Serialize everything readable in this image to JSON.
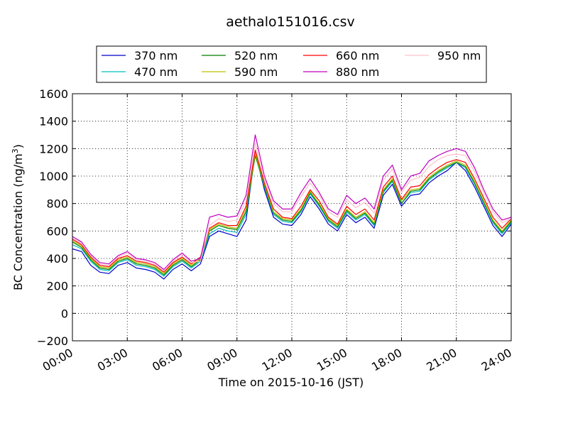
{
  "chart_data": {
    "type": "line",
    "title": "aethalo151016.csv",
    "xlabel": "Time on 2015-10-16 (JST)",
    "ylabel": "BC Concentration (ng/m",
    "ylabel_sup": "3",
    "ylabel_close": ")",
    "xlim": [
      0,
      24
    ],
    "ylim": [
      -200,
      1600
    ],
    "grid": true,
    "legend_position": "top-center",
    "x_ticks": [
      {
        "value": 0,
        "label": "00:00"
      },
      {
        "value": 3,
        "label": "03:00"
      },
      {
        "value": 6,
        "label": "06:00"
      },
      {
        "value": 9,
        "label": "09:00"
      },
      {
        "value": 12,
        "label": "12:00"
      },
      {
        "value": 15,
        "label": "15:00"
      },
      {
        "value": 18,
        "label": "18:00"
      },
      {
        "value": 21,
        "label": "21:00"
      },
      {
        "value": 24,
        "label": "24:00"
      }
    ],
    "y_ticks": [
      {
        "value": -200,
        "label": "−200"
      },
      {
        "value": 0,
        "label": "0"
      },
      {
        "value": 200,
        "label": "200"
      },
      {
        "value": 400,
        "label": "400"
      },
      {
        "value": 600,
        "label": "600"
      },
      {
        "value": 800,
        "label": "800"
      },
      {
        "value": 1000,
        "label": "1000"
      },
      {
        "value": 1200,
        "label": "1200"
      },
      {
        "value": 1400,
        "label": "1400"
      },
      {
        "value": 1600,
        "label": "1600"
      }
    ],
    "x": [
      0,
      0.5,
      1,
      1.5,
      2,
      2.5,
      3,
      3.5,
      4,
      4.5,
      5,
      5.5,
      6,
      6.5,
      7,
      7.5,
      8,
      8.5,
      9,
      9.5,
      10,
      10.5,
      11,
      11.5,
      12,
      12.5,
      13,
      13.5,
      14,
      14.5,
      15,
      15.5,
      16,
      16.5,
      17,
      17.5,
      18,
      18.5,
      19,
      19.5,
      20,
      20.5,
      21,
      21.5,
      22,
      22.5,
      23,
      23.5,
      24
    ],
    "series": [
      {
        "name": "370 nm",
        "color": "#0000cc",
        "values": [
          470,
          450,
          350,
          300,
          290,
          350,
          370,
          330,
          320,
          300,
          250,
          320,
          360,
          310,
          360,
          560,
          600,
          580,
          560,
          680,
          1180,
          900,
          700,
          650,
          640,
          720,
          850,
          760,
          650,
          600,
          720,
          660,
          700,
          620,
          860,
          940,
          780,
          860,
          870,
          950,
          1000,
          1040,
          1100,
          1040,
          920,
          780,
          640,
          560,
          650
        ]
      },
      {
        "name": "470 nm",
        "color": "#00bfbf",
        "values": [
          500,
          470,
          380,
          320,
          310,
          370,
          390,
          350,
          340,
          320,
          270,
          340,
          380,
          330,
          380,
          580,
          620,
          600,
          590,
          720,
          1160,
          920,
          720,
          670,
          660,
          740,
          870,
          780,
          670,
          620,
          740,
          680,
          720,
          640,
          880,
          960,
          800,
          880,
          890,
          970,
          1020,
          1060,
          1100,
          1060,
          940,
          800,
          660,
          580,
          660
        ]
      },
      {
        "name": "520 nm",
        "color": "#008000",
        "values": [
          520,
          480,
          390,
          330,
          320,
          380,
          400,
          360,
          350,
          330,
          280,
          350,
          390,
          340,
          390,
          600,
          640,
          620,
          610,
          740,
          1150,
          930,
          730,
          680,
          670,
          750,
          880,
          790,
          680,
          630,
          750,
          690,
          730,
          650,
          890,
          970,
          800,
          890,
          900,
          980,
          1030,
          1070,
          1100,
          1070,
          950,
          810,
          670,
          590,
          670
        ]
      },
      {
        "name": "590 nm",
        "color": "#bfbf00",
        "values": [
          530,
          490,
          400,
          340,
          330,
          390,
          410,
          370,
          360,
          340,
          290,
          360,
          400,
          350,
          400,
          610,
          650,
          630,
          620,
          760,
          1170,
          940,
          740,
          690,
          680,
          760,
          890,
          800,
          690,
          640,
          760,
          700,
          740,
          660,
          900,
          980,
          820,
          900,
          910,
          990,
          1040,
          1080,
          1110,
          1080,
          960,
          820,
          680,
          600,
          680
        ]
      },
      {
        "name": "660 nm",
        "color": "#ff0000",
        "values": [
          540,
          500,
          410,
          350,
          340,
          400,
          420,
          380,
          370,
          350,
          300,
          370,
          410,
          360,
          410,
          620,
          660,
          640,
          640,
          780,
          1190,
          950,
          760,
          700,
          690,
          780,
          900,
          820,
          700,
          650,
          780,
          720,
          760,
          680,
          920,
          1000,
          830,
          920,
          930,
          1010,
          1060,
          1100,
          1120,
          1100,
          980,
          840,
          700,
          620,
          690
        ]
      },
      {
        "name": "880 nm",
        "color": "#bf00bf",
        "values": [
          560,
          520,
          430,
          370,
          360,
          420,
          450,
          400,
          390,
          370,
          320,
          390,
          440,
          380,
          400,
          700,
          720,
          700,
          710,
          860,
          1300,
          1000,
          820,
          760,
          760,
          880,
          980,
          880,
          760,
          720,
          860,
          800,
          840,
          760,
          1000,
          1080,
          900,
          1000,
          1020,
          1110,
          1150,
          1180,
          1200,
          1180,
          1060,
          900,
          760,
          680,
          700
        ]
      },
      {
        "name": "950 nm",
        "color": "#ffc0cb",
        "values": [
          550,
          510,
          420,
          360,
          350,
          410,
          440,
          390,
          380,
          360,
          310,
          380,
          430,
          370,
          380,
          640,
          690,
          670,
          680,
          820,
          1240,
          980,
          800,
          740,
          740,
          850,
          950,
          860,
          740,
          700,
          830,
          770,
          810,
          730,
          970,
          1050,
          880,
          970,
          990,
          1070,
          1120,
          1150,
          1160,
          1150,
          1030,
          880,
          740,
          660,
          690
        ]
      }
    ]
  }
}
